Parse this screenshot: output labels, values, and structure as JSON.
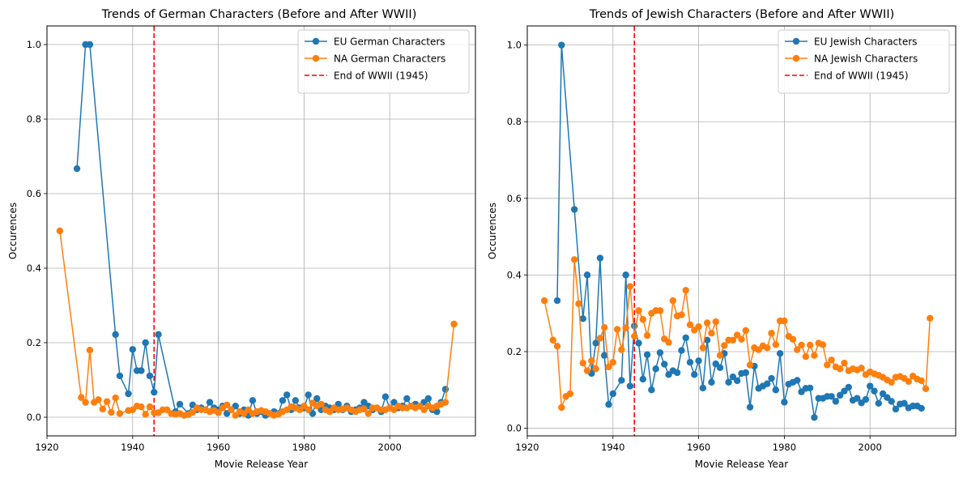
{
  "chart_data": [
    {
      "type": "line",
      "title": "Trends of German Characters (Before and After WWII)",
      "xlabel": "Movie Release Year",
      "ylabel": "Occurences",
      "xlim": [
        1920,
        2020
      ],
      "ylim": [
        -0.05,
        1.05
      ],
      "xticks": [
        1920,
        1940,
        1960,
        1980,
        2000
      ],
      "yticks": [
        0.0,
        0.2,
        0.4,
        0.6,
        0.8,
        1.0
      ],
      "xtick_labels": [
        "1920",
        "1940",
        "1960",
        "1980",
        "2000"
      ],
      "ytick_labels": [
        "0.0",
        "0.2",
        "0.4",
        "0.6",
        "0.8",
        "1.0"
      ],
      "grid": true,
      "legend_position": "top-right",
      "series": [
        {
          "name": "EU German Characters",
          "color": "#1f77b4",
          "marker": "circle",
          "x": [
            1927,
            1929,
            1930,
            1936,
            1937,
            1939,
            1940,
            1941,
            1942,
            1943,
            1944,
            1945,
            1946,
            1950,
            1951,
            1953,
            1954,
            1955,
            1956,
            1957,
            1958,
            1959,
            1960,
            1961,
            1962,
            1963,
            1964,
            1965,
            1966,
            1967,
            1968,
            1969,
            1970,
            1971,
            1972,
            1973,
            1974,
            1975,
            1976,
            1977,
            1978,
            1979,
            1980,
            1981,
            1982,
            1983,
            1984,
            1985,
            1986,
            1987,
            1988,
            1989,
            1990,
            1991,
            1992,
            1993,
            1994,
            1995,
            1996,
            1997,
            1998,
            1999,
            2000,
            2001,
            2002,
            2003,
            2004,
            2005,
            2006,
            2007,
            2008,
            2009,
            2010,
            2011,
            2012,
            2013
          ],
          "y": [
            0.667,
            1.0,
            1.0,
            0.222,
            0.111,
            0.063,
            0.182,
            0.125,
            0.125,
            0.2,
            0.111,
            0.067,
            0.222,
            0.015,
            0.035,
            0.01,
            0.033,
            0.02,
            0.025,
            0.02,
            0.04,
            0.025,
            0.02,
            0.03,
            0.01,
            0.02,
            0.03,
            0.01,
            0.02,
            0.005,
            0.045,
            0.01,
            0.015,
            0.005,
            0.01,
            0.015,
            0.01,
            0.045,
            0.06,
            0.02,
            0.045,
            0.025,
            0.025,
            0.06,
            0.01,
            0.05,
            0.02,
            0.03,
            0.025,
            0.02,
            0.035,
            0.02,
            0.03,
            0.015,
            0.02,
            0.025,
            0.04,
            0.03,
            0.02,
            0.025,
            0.015,
            0.055,
            0.025,
            0.04,
            0.025,
            0.03,
            0.05,
            0.03,
            0.035,
            0.03,
            0.04,
            0.05,
            0.02,
            0.015,
            0.04,
            0.075
          ]
        },
        {
          "name": "NA German Characters",
          "color": "#ff7f0e",
          "marker": "circle",
          "x": [
            1923,
            1928,
            1929,
            1930,
            1931,
            1932,
            1933,
            1934,
            1935,
            1936,
            1937,
            1939,
            1940,
            1941,
            1942,
            1943,
            1944,
            1945,
            1946,
            1947,
            1948,
            1949,
            1950,
            1951,
            1952,
            1953,
            1954,
            1955,
            1956,
            1957,
            1958,
            1959,
            1960,
            1961,
            1962,
            1963,
            1964,
            1965,
            1966,
            1967,
            1968,
            1969,
            1970,
            1971,
            1972,
            1973,
            1974,
            1975,
            1976,
            1977,
            1978,
            1979,
            1980,
            1981,
            1982,
            1983,
            1984,
            1985,
            1986,
            1987,
            1988,
            1989,
            1990,
            1991,
            1992,
            1993,
            1994,
            1995,
            1996,
            1997,
            1998,
            1999,
            2000,
            2001,
            2002,
            2003,
            2004,
            2005,
            2006,
            2007,
            2008,
            2009,
            2010,
            2011,
            2012,
            2013,
            2015
          ],
          "y": [
            0.5,
            0.053,
            0.04,
            0.18,
            0.04,
            0.047,
            0.022,
            0.042,
            0.013,
            0.052,
            0.01,
            0.018,
            0.02,
            0.03,
            0.028,
            0.008,
            0.028,
            0.012,
            0.012,
            0.02,
            0.02,
            0.01,
            0.008,
            0.01,
            0.005,
            0.007,
            0.013,
            0.025,
            0.02,
            0.02,
            0.015,
            0.018,
            0.012,
            0.025,
            0.033,
            0.02,
            0.005,
            0.015,
            0.01,
            0.02,
            0.01,
            0.015,
            0.018,
            0.015,
            0.01,
            0.005,
            0.008,
            0.015,
            0.02,
            0.028,
            0.025,
            0.02,
            0.03,
            0.02,
            0.038,
            0.03,
            0.035,
            0.02,
            0.015,
            0.025,
            0.02,
            0.022,
            0.025,
            0.02,
            0.015,
            0.02,
            0.022,
            0.01,
            0.025,
            0.025,
            0.02,
            0.02,
            0.025,
            0.02,
            0.03,
            0.025,
            0.025,
            0.03,
            0.025,
            0.03,
            0.02,
            0.03,
            0.025,
            0.03,
            0.035,
            0.04,
            0.25
          ]
        },
        {
          "name": "End of WWII (1945)",
          "color": "#ff0000",
          "style": "dashed",
          "vline_x": 1945
        }
      ]
    },
    {
      "type": "line",
      "title": "Trends of Jewish Characters (Before and After WWII)",
      "xlabel": "Movie Release Year",
      "ylabel": "Occurences",
      "xlim": [
        1920,
        2020
      ],
      "ylim": [
        -0.02,
        1.05
      ],
      "xticks": [
        1920,
        1940,
        1960,
        1980,
        2000
      ],
      "yticks": [
        0.0,
        0.2,
        0.4,
        0.6,
        0.8,
        1.0
      ],
      "xtick_labels": [
        "1920",
        "1940",
        "1960",
        "1980",
        "2000"
      ],
      "ytick_labels": [
        "0.0",
        "0.2",
        "0.4",
        "0.6",
        "0.8",
        "1.0"
      ],
      "grid": true,
      "legend_position": "top-right",
      "series": [
        {
          "name": "EU Jewish Characters",
          "color": "#1f77b4",
          "marker": "circle",
          "x": [
            1927,
            1928,
            1931,
            1933,
            1934,
            1935,
            1936,
            1937,
            1938,
            1939,
            1940,
            1942,
            1943,
            1944,
            1945,
            1946,
            1947,
            1948,
            1949,
            1950,
            1951,
            1952,
            1953,
            1954,
            1955,
            1956,
            1957,
            1958,
            1959,
            1960,
            1961,
            1962,
            1963,
            1964,
            1965,
            1966,
            1967,
            1968,
            1969,
            1970,
            1971,
            1972,
            1973,
            1974,
            1975,
            1976,
            1977,
            1978,
            1979,
            1980,
            1981,
            1982,
            1983,
            1984,
            1985,
            1986,
            1987,
            1988,
            1989,
            1990,
            1991,
            1992,
            1993,
            1994,
            1995,
            1996,
            1997,
            1998,
            1999,
            2000,
            2001,
            2002,
            2003,
            2004,
            2005,
            2006,
            2007,
            2008,
            2009,
            2010,
            2011,
            2012
          ],
          "y": [
            0.333,
            1.0,
            0.571,
            0.286,
            0.4,
            0.143,
            0.222,
            0.444,
            0.19,
            0.062,
            0.09,
            0.125,
            0.4,
            0.11,
            0.267,
            0.222,
            0.128,
            0.192,
            0.1,
            0.155,
            0.197,
            0.167,
            0.14,
            0.15,
            0.145,
            0.203,
            0.236,
            0.172,
            0.14,
            0.176,
            0.105,
            0.23,
            0.12,
            0.168,
            0.158,
            0.195,
            0.12,
            0.134,
            0.124,
            0.143,
            0.145,
            0.055,
            0.162,
            0.104,
            0.11,
            0.116,
            0.13,
            0.1,
            0.195,
            0.068,
            0.115,
            0.12,
            0.125,
            0.095,
            0.104,
            0.105,
            0.028,
            0.078,
            0.078,
            0.083,
            0.083,
            0.07,
            0.086,
            0.097,
            0.107,
            0.073,
            0.078,
            0.066,
            0.075,
            0.11,
            0.097,
            0.065,
            0.09,
            0.08,
            0.07,
            0.05,
            0.063,
            0.065,
            0.053,
            0.058,
            0.058,
            0.052
          ]
        },
        {
          "name": "NA Jewish Characters",
          "color": "#ff7f0e",
          "marker": "circle",
          "x": [
            1924,
            1926,
            1927,
            1928,
            1929,
            1930,
            1931,
            1932,
            1933,
            1934,
            1935,
            1936,
            1937,
            1938,
            1939,
            1940,
            1941,
            1942,
            1943,
            1944,
            1945,
            1946,
            1947,
            1948,
            1949,
            1950,
            1951,
            1952,
            1953,
            1954,
            1955,
            1956,
            1957,
            1958,
            1959,
            1960,
            1961,
            1962,
            1963,
            1964,
            1965,
            1966,
            1967,
            1968,
            1969,
            1970,
            1971,
            1972,
            1973,
            1974,
            1975,
            1976,
            1977,
            1978,
            1979,
            1980,
            1981,
            1982,
            1983,
            1984,
            1985,
            1986,
            1987,
            1988,
            1989,
            1990,
            1991,
            1992,
            1993,
            1994,
            1995,
            1996,
            1997,
            1998,
            1999,
            2000,
            2001,
            2002,
            2003,
            2004,
            2005,
            2006,
            2007,
            2008,
            2009,
            2010,
            2011,
            2012,
            2013,
            2014
          ],
          "y": [
            0.333,
            0.23,
            0.214,
            0.054,
            0.083,
            0.09,
            0.44,
            0.325,
            0.17,
            0.15,
            0.176,
            0.155,
            0.235,
            0.263,
            0.16,
            0.172,
            0.258,
            0.205,
            0.262,
            0.37,
            0.24,
            0.307,
            0.284,
            0.242,
            0.3,
            0.307,
            0.307,
            0.233,
            0.224,
            0.333,
            0.293,
            0.296,
            0.36,
            0.27,
            0.256,
            0.265,
            0.21,
            0.275,
            0.248,
            0.278,
            0.19,
            0.216,
            0.23,
            0.23,
            0.243,
            0.232,
            0.255,
            0.165,
            0.21,
            0.205,
            0.215,
            0.21,
            0.248,
            0.218,
            0.28,
            0.28,
            0.24,
            0.232,
            0.205,
            0.217,
            0.187,
            0.217,
            0.19,
            0.222,
            0.218,
            0.165,
            0.178,
            0.16,
            0.155,
            0.17,
            0.15,
            0.155,
            0.152,
            0.157,
            0.14,
            0.147,
            0.142,
            0.138,
            0.133,
            0.126,
            0.12,
            0.133,
            0.135,
            0.13,
            0.122,
            0.136,
            0.128,
            0.124,
            0.103,
            0.287
          ]
        },
        {
          "name": "End of WWII (1945)",
          "color": "#ff0000",
          "style": "dashed",
          "vline_x": 1945
        }
      ]
    }
  ]
}
